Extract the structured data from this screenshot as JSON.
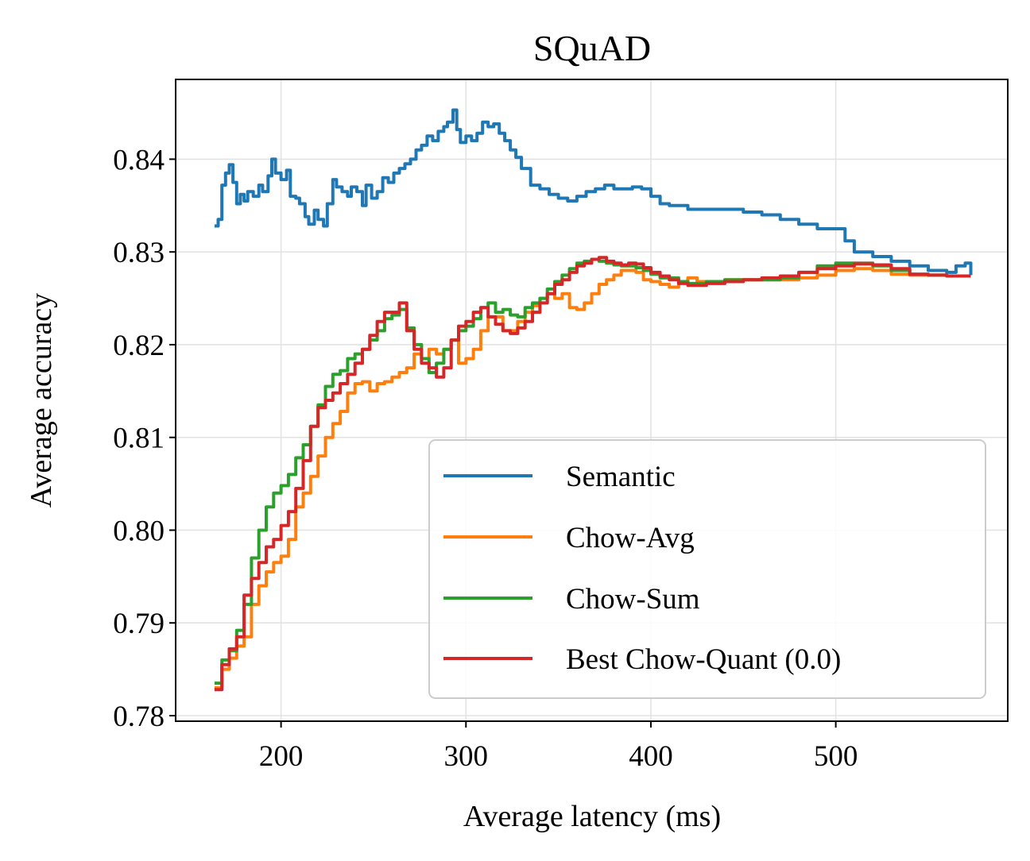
{
  "chart_data": {
    "type": "line",
    "title": "SQuAD",
    "xlabel": "Average latency (ms)",
    "ylabel": "Average accuracy",
    "xlim": [
      143,
      593
    ],
    "ylim": [
      0.7794,
      0.8486
    ],
    "xticks": [
      200,
      300,
      400,
      500
    ],
    "xtick_labels": [
      "200",
      "300",
      "400",
      "500"
    ],
    "yticks": [
      0.78,
      0.79,
      0.8,
      0.81,
      0.82,
      0.83,
      0.84
    ],
    "ytick_labels": [
      "0.78",
      "0.79",
      "0.80",
      "0.81",
      "0.82",
      "0.83",
      "0.84"
    ],
    "grid": true,
    "legend_position": "lower-right",
    "series": [
      {
        "name": "Semantic",
        "color": "#1f77b4",
        "x": [
          164,
          166,
          168,
          170,
          172,
          174,
          176,
          178,
          180,
          182,
          185,
          188,
          190,
          193,
          195,
          197,
          200,
          203,
          205,
          208,
          210,
          213,
          215,
          218,
          220,
          223,
          225,
          228,
          230,
          233,
          236,
          238,
          241,
          244,
          246,
          249,
          252,
          255,
          258,
          261,
          264,
          267,
          270,
          273,
          276,
          279,
          282,
          285,
          288,
          290,
          293,
          295,
          297,
          300,
          303,
          306,
          309,
          312,
          315,
          318,
          321,
          324,
          327,
          330,
          335,
          340,
          345,
          350,
          355,
          360,
          365,
          370,
          375,
          380,
          385,
          390,
          395,
          400,
          405,
          410,
          420,
          430,
          440,
          450,
          460,
          470,
          480,
          490,
          500,
          505,
          510,
          520,
          530,
          540,
          550,
          560,
          565,
          570,
          573
        ],
        "values": [
          0.8328,
          0.8335,
          0.8372,
          0.8385,
          0.8394,
          0.8375,
          0.8352,
          0.8362,
          0.8355,
          0.8365,
          0.836,
          0.8372,
          0.8365,
          0.8382,
          0.84,
          0.8385,
          0.8378,
          0.8388,
          0.836,
          0.8358,
          0.8352,
          0.8338,
          0.833,
          0.8345,
          0.8335,
          0.8328,
          0.8352,
          0.8378,
          0.837,
          0.8365,
          0.836,
          0.837,
          0.8365,
          0.835,
          0.8372,
          0.8358,
          0.8365,
          0.838,
          0.8375,
          0.8385,
          0.839,
          0.8395,
          0.84,
          0.841,
          0.8415,
          0.8425,
          0.842,
          0.843,
          0.8435,
          0.844,
          0.8453,
          0.8432,
          0.8418,
          0.8425,
          0.842,
          0.8428,
          0.844,
          0.8435,
          0.8438,
          0.8428,
          0.842,
          0.841,
          0.8402,
          0.839,
          0.8372,
          0.8368,
          0.8362,
          0.8358,
          0.8355,
          0.836,
          0.8365,
          0.8368,
          0.8372,
          0.8368,
          0.8368,
          0.837,
          0.8368,
          0.836,
          0.8352,
          0.835,
          0.8346,
          0.8346,
          0.8346,
          0.8343,
          0.834,
          0.8335,
          0.833,
          0.8325,
          0.8325,
          0.8312,
          0.83,
          0.8295,
          0.829,
          0.8285,
          0.828,
          0.8278,
          0.8285,
          0.8288,
          0.8275
        ]
      },
      {
        "name": "Chow-Avg",
        "color": "#ff7f0e",
        "x": [
          164,
          168,
          172,
          176,
          180,
          184,
          188,
          192,
          196,
          200,
          204,
          208,
          212,
          216,
          220,
          224,
          228,
          232,
          236,
          240,
          244,
          248,
          252,
          256,
          260,
          264,
          268,
          272,
          276,
          280,
          284,
          288,
          292,
          296,
          300,
          304,
          308,
          312,
          316,
          320,
          324,
          328,
          332,
          336,
          340,
          344,
          348,
          352,
          356,
          360,
          364,
          368,
          372,
          376,
          380,
          384,
          388,
          392,
          396,
          400,
          405,
          410,
          415,
          420,
          425,
          430,
          440,
          450,
          460,
          470,
          480,
          490,
          500,
          510,
          520,
          530,
          540,
          550,
          560,
          570,
          573
        ],
        "values": [
          0.783,
          0.785,
          0.7862,
          0.7875,
          0.7885,
          0.792,
          0.794,
          0.7955,
          0.7965,
          0.7972,
          0.799,
          0.8025,
          0.804,
          0.8058,
          0.808,
          0.81,
          0.8115,
          0.8128,
          0.8148,
          0.8158,
          0.816,
          0.815,
          0.8158,
          0.816,
          0.8165,
          0.817,
          0.8175,
          0.819,
          0.8185,
          0.8195,
          0.819,
          0.8195,
          0.8205,
          0.818,
          0.8185,
          0.8195,
          0.8215,
          0.823,
          0.823,
          0.8215,
          0.8215,
          0.8225,
          0.8235,
          0.8242,
          0.825,
          0.8255,
          0.825,
          0.8255,
          0.824,
          0.8238,
          0.8245,
          0.8255,
          0.8265,
          0.827,
          0.8275,
          0.828,
          0.828,
          0.8278,
          0.827,
          0.8268,
          0.8265,
          0.8262,
          0.8268,
          0.8272,
          0.8268,
          0.8268,
          0.827,
          0.827,
          0.827,
          0.827,
          0.8272,
          0.8275,
          0.828,
          0.8282,
          0.828,
          0.8276,
          0.8275,
          0.8275,
          0.8274,
          0.8274,
          0.8274
        ]
      },
      {
        "name": "Chow-Sum",
        "color": "#2ca02c",
        "x": [
          164,
          168,
          172,
          176,
          180,
          184,
          188,
          192,
          196,
          200,
          204,
          208,
          212,
          216,
          220,
          224,
          228,
          232,
          236,
          240,
          244,
          248,
          252,
          256,
          260,
          264,
          268,
          272,
          276,
          280,
          284,
          288,
          292,
          296,
          300,
          304,
          308,
          312,
          316,
          320,
          324,
          328,
          332,
          336,
          340,
          344,
          348,
          352,
          356,
          360,
          364,
          368,
          372,
          376,
          380,
          384,
          388,
          392,
          396,
          400,
          405,
          410,
          415,
          420,
          425,
          430,
          440,
          450,
          460,
          470,
          480,
          490,
          500,
          510,
          520,
          530,
          540,
          550,
          560,
          570,
          573
        ],
        "values": [
          0.7835,
          0.786,
          0.787,
          0.7892,
          0.792,
          0.797,
          0.8,
          0.8025,
          0.804,
          0.8048,
          0.806,
          0.8078,
          0.8092,
          0.8112,
          0.8135,
          0.8155,
          0.8168,
          0.8172,
          0.8185,
          0.819,
          0.8195,
          0.8205,
          0.8215,
          0.8228,
          0.8232,
          0.8238,
          0.8218,
          0.82,
          0.8185,
          0.817,
          0.818,
          0.8195,
          0.8205,
          0.8215,
          0.822,
          0.8228,
          0.824,
          0.8245,
          0.8235,
          0.8238,
          0.8232,
          0.823,
          0.824,
          0.8245,
          0.825,
          0.826,
          0.8268,
          0.8275,
          0.8282,
          0.8288,
          0.829,
          0.8292,
          0.829,
          0.8288,
          0.8286,
          0.8285,
          0.8285,
          0.8283,
          0.828,
          0.8276,
          0.8272,
          0.8272,
          0.8268,
          0.8266,
          0.8266,
          0.8268,
          0.827,
          0.827,
          0.827,
          0.8272,
          0.8278,
          0.8285,
          0.8288,
          0.8288,
          0.8285,
          0.828,
          0.8276,
          0.8275,
          0.8274,
          0.8274,
          0.8274
        ]
      },
      {
        "name": "Best Chow-Quant (0.0)",
        "color": "#d62728",
        "x": [
          164,
          168,
          172,
          176,
          180,
          184,
          188,
          192,
          196,
          200,
          204,
          208,
          212,
          216,
          220,
          224,
          228,
          232,
          236,
          240,
          244,
          248,
          252,
          256,
          260,
          264,
          268,
          272,
          276,
          280,
          284,
          288,
          292,
          296,
          300,
          304,
          308,
          312,
          316,
          320,
          324,
          328,
          332,
          336,
          340,
          344,
          348,
          352,
          356,
          360,
          364,
          368,
          372,
          376,
          380,
          384,
          388,
          392,
          396,
          400,
          405,
          410,
          415,
          420,
          425,
          430,
          440,
          450,
          460,
          470,
          480,
          490,
          500,
          510,
          520,
          530,
          540,
          550,
          560,
          570,
          573
        ],
        "values": [
          0.7828,
          0.7855,
          0.7872,
          0.7885,
          0.793,
          0.7948,
          0.7965,
          0.7982,
          0.799,
          0.8005,
          0.802,
          0.8045,
          0.8075,
          0.8112,
          0.8132,
          0.814,
          0.8148,
          0.8158,
          0.8168,
          0.818,
          0.8195,
          0.821,
          0.8225,
          0.8235,
          0.8235,
          0.8245,
          0.8215,
          0.8195,
          0.818,
          0.8175,
          0.8165,
          0.8175,
          0.8205,
          0.822,
          0.8225,
          0.8235,
          0.824,
          0.823,
          0.8222,
          0.8215,
          0.8212,
          0.8218,
          0.8225,
          0.8235,
          0.8245,
          0.8255,
          0.8265,
          0.827,
          0.8278,
          0.8285,
          0.8288,
          0.8292,
          0.8294,
          0.829,
          0.8288,
          0.8286,
          0.8288,
          0.8287,
          0.8283,
          0.8278,
          0.8274,
          0.827,
          0.8266,
          0.8264,
          0.8264,
          0.8266,
          0.8268,
          0.827,
          0.8272,
          0.8274,
          0.8278,
          0.8282,
          0.8285,
          0.8287,
          0.8286,
          0.8282,
          0.8276,
          0.8275,
          0.8274,
          0.8274,
          0.8274
        ]
      }
    ]
  }
}
